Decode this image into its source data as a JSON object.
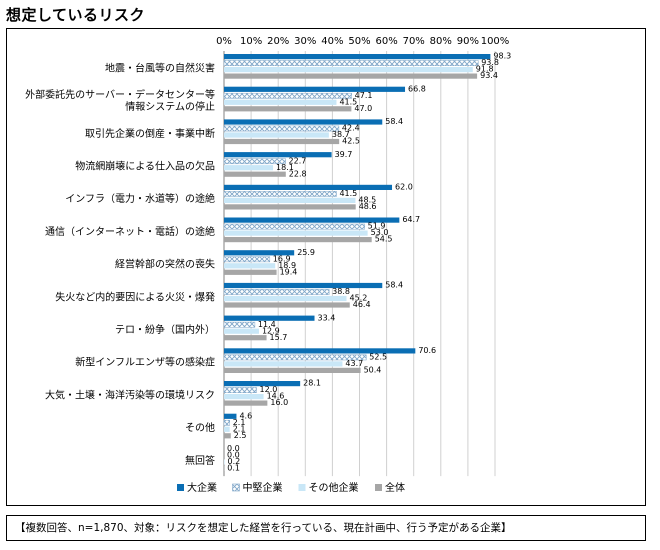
{
  "page": {
    "title": "想定しているリスク",
    "note": "【複数回答、n=1,870、対象：リスクを想定した経営を行っている、現在計画中、行う予定がある企業】"
  },
  "chart_data": {
    "type": "bar",
    "orientation": "horizontal",
    "xlim": [
      0,
      100
    ],
    "x_ticks": [
      "0%",
      "10%",
      "20%",
      "30%",
      "40%",
      "50%",
      "60%",
      "70%",
      "80%",
      "90%",
      "100%"
    ],
    "grid": true,
    "legend_position": "bottom",
    "categories": [
      [
        "地震・台風等の自然災害"
      ],
      [
        "外部委託先のサーバー・データセンター等",
        "情報システムの停止"
      ],
      [
        "取引先企業の倒産・事業中断"
      ],
      [
        "物流網崩壊による仕入品の欠品"
      ],
      [
        "インフラ（電力・水道等）の途絶"
      ],
      [
        "通信（インターネット・電話）の途絶"
      ],
      [
        "経営幹部の突然の喪失"
      ],
      [
        "失火など内的要因による火災・爆発"
      ],
      [
        "テロ・紛争（国内外）"
      ],
      [
        "新型インフルエンザ等の感染症"
      ],
      [
        "大気・土壌・海洋汚染等の環境リスク"
      ],
      [
        "その他"
      ],
      [
        "無回答"
      ]
    ],
    "series": [
      {
        "name": "大企業",
        "color": "#0a6eb4",
        "pattern": "solid",
        "values": [
          98.3,
          66.8,
          58.4,
          39.7,
          62.0,
          64.7,
          25.9,
          58.4,
          33.4,
          70.6,
          28.1,
          4.6,
          0.0
        ],
        "labels": [
          "98.3",
          "66.8",
          "58.4",
          "39.7",
          "62.0",
          "64.7",
          "25.9",
          "58.4",
          "33.4",
          "70.6",
          "28.1",
          "4.6",
          "0.0"
        ]
      },
      {
        "name": "中堅企業",
        "color": "#8fb4d2",
        "pattern": "cross",
        "values": [
          93.8,
          47.1,
          42.4,
          22.7,
          41.5,
          51.9,
          16.9,
          38.8,
          11.4,
          52.5,
          12.0,
          2.1,
          0.0
        ],
        "labels": [
          "93.8",
          "47.1",
          "42.4",
          "22.7",
          "41.5",
          "51.9",
          "16.9",
          "38.8",
          "11.4",
          "52.5",
          "12.0",
          "2.1",
          "0.0"
        ]
      },
      {
        "name": "その他企業",
        "color": "#c9e7f7",
        "pattern": "solid",
        "values": [
          91.8,
          41.5,
          38.7,
          18.1,
          48.5,
          53.0,
          18.9,
          45.2,
          12.9,
          43.7,
          14.6,
          2.1,
          0.2
        ],
        "labels": [
          "91.8",
          "41.5",
          "38.7",
          "18.1",
          "48.5",
          "53.0",
          "18.9",
          "45.2",
          "12.9",
          "43.7",
          "14.6",
          "2.1",
          "0.2"
        ]
      },
      {
        "name": "全体",
        "color": "#a6a6a6",
        "pattern": "solid",
        "values": [
          93.4,
          47.0,
          42.5,
          22.8,
          48.6,
          54.5,
          19.4,
          46.4,
          15.7,
          50.4,
          16.0,
          2.5,
          0.1
        ],
        "labels": [
          "93.4",
          "47.0",
          "42.5",
          "22.8",
          "48.6",
          "54.5",
          "19.4",
          "46.4",
          "15.7",
          "50.4",
          "16.0",
          "2.5",
          "0.1"
        ]
      }
    ]
  }
}
